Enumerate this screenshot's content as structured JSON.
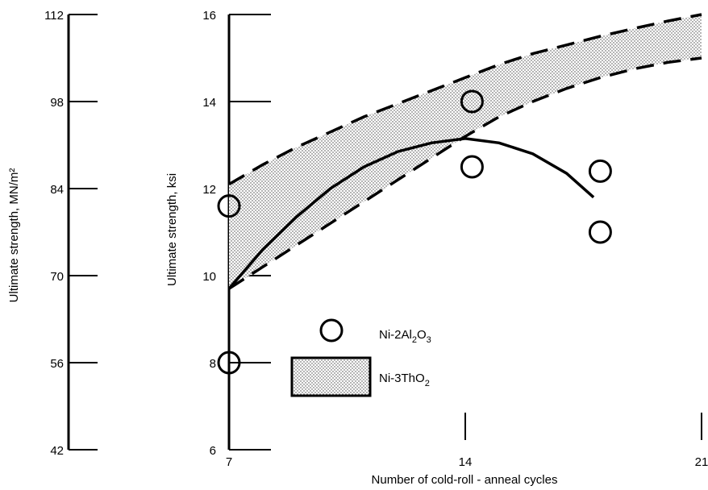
{
  "chart_data": {
    "type": "scatter",
    "title": "",
    "xlabel": "Number of cold-roll - anneal cycles",
    "ylabel": "Ultimate strength, ksi",
    "ylabel_secondary": "Ultimate strength, MN/m²",
    "xlim": [
      7,
      21
    ],
    "ylim": [
      6,
      16
    ],
    "x_ticks": [
      "7",
      "14",
      "21"
    ],
    "y_ticks": [
      "6",
      "8",
      "10",
      "12",
      "14",
      "16"
    ],
    "y2lim": [
      42,
      112
    ],
    "y2_ticks": [
      "42",
      "56",
      "70",
      "84",
      "98",
      "112"
    ],
    "grid": false,
    "legend": "lower-center",
    "series": [
      {
        "name": "Ni-2Al₂O₃",
        "kind": "points",
        "marker": "open-circle",
        "points": [
          {
            "x": 7.0,
            "y": 11.6
          },
          {
            "x": 7.0,
            "y": 8.0
          },
          {
            "x": 14.2,
            "y": 14.0
          },
          {
            "x": 14.2,
            "y": 12.5
          },
          {
            "x": 18.0,
            "y": 12.4
          },
          {
            "x": 18.0,
            "y": 11.0
          }
        ]
      },
      {
        "name": "Ni-2Al₂O₃ trend",
        "kind": "curve",
        "style": "solid",
        "x": [
          7.0,
          8.0,
          9.0,
          10.0,
          11.0,
          12.0,
          13.0,
          14.0,
          15.0,
          16.0,
          17.0,
          17.8
        ],
        "y": [
          9.7,
          10.6,
          11.35,
          12.0,
          12.5,
          12.85,
          13.05,
          13.15,
          13.05,
          12.8,
          12.35,
          11.8
        ]
      },
      {
        "name": "Ni-3ThO₂",
        "kind": "band",
        "fill": "dotted",
        "x": [
          7.0,
          8.0,
          9.0,
          10.0,
          11.0,
          12.0,
          13.0,
          14.0,
          15.0,
          16.0,
          17.0,
          18.0,
          19.0,
          20.0,
          21.0
        ],
        "upper": [
          12.1,
          12.55,
          12.95,
          13.3,
          13.65,
          13.95,
          14.25,
          14.55,
          14.85,
          15.1,
          15.3,
          15.5,
          15.68,
          15.85,
          16.0
        ],
        "lower": [
          9.7,
          10.2,
          10.7,
          11.2,
          11.7,
          12.2,
          12.7,
          13.2,
          13.65,
          14.0,
          14.3,
          14.55,
          14.75,
          14.9,
          15.0
        ]
      }
    ],
    "legend_entries": [
      {
        "label": "Ni-2Al",
        "sub": "2",
        "label_end": "O",
        "sub2": "3"
      },
      {
        "label": "Ni-3ThO",
        "sub": "2"
      }
    ]
  }
}
